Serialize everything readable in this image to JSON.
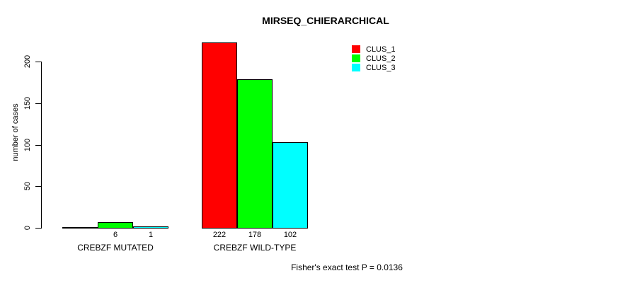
{
  "chart_data": {
    "type": "bar",
    "title": "MIRSEQ_CHIERARCHICAL",
    "xlabel": "",
    "ylabel": "number of cases",
    "yticks": [
      0,
      50,
      100,
      150,
      200
    ],
    "ylim": [
      0,
      230
    ],
    "grid": false,
    "categories": [
      "CREBZF MUTATED",
      "CREBZF WILD-TYPE"
    ],
    "series": [
      {
        "name": "CLUS_1",
        "color": "#FF0000",
        "values": [
          0,
          222
        ]
      },
      {
        "name": "CLUS_2",
        "color": "#00FF00",
        "values": [
          6,
          178
        ]
      },
      {
        "name": "CLUS_3",
        "color": "#00FFFF",
        "values": [
          1,
          102
        ]
      }
    ],
    "bar_value_labels": [
      [
        "",
        "6",
        "1"
      ],
      [
        "222",
        "178",
        "102"
      ]
    ],
    "legend": {
      "position": "top-right",
      "entries": [
        {
          "label": "CLUS_1",
          "color": "#FF0000"
        },
        {
          "label": "CLUS_2",
          "color": "#00FF00"
        },
        {
          "label": "CLUS_3",
          "color": "#00FFFF"
        }
      ]
    },
    "annotation": "Fisher's exact test P = 0.0136"
  }
}
